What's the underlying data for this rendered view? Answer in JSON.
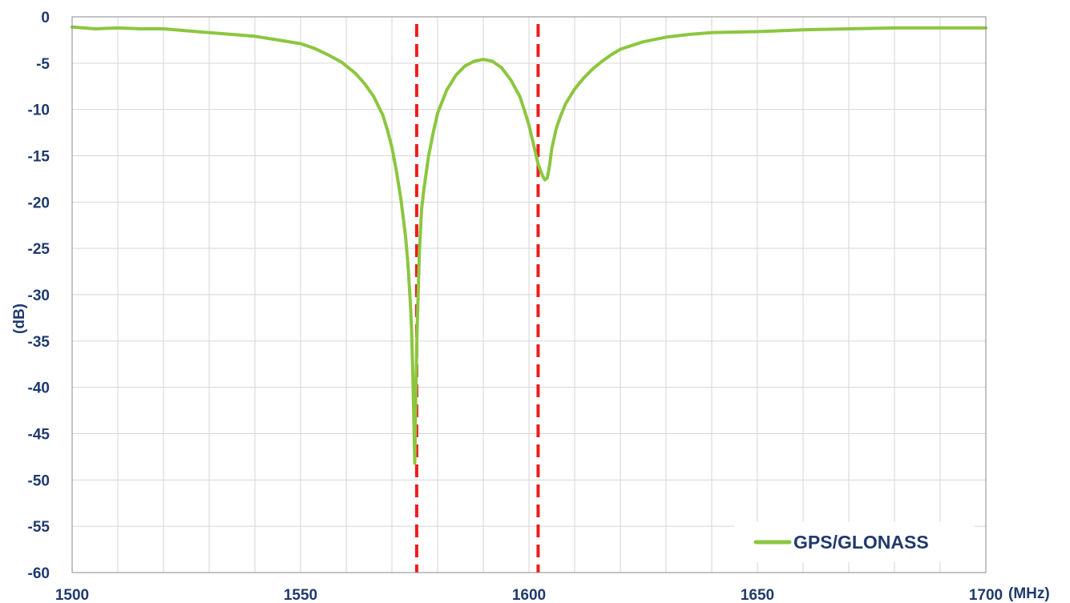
{
  "chart_data": {
    "type": "line",
    "title": "",
    "xlabel": "(MHz)",
    "ylabel": "(dB)",
    "xlim": [
      1500,
      1700
    ],
    "ylim": [
      -60,
      0
    ],
    "xticks": [
      1500,
      1550,
      1600,
      1650,
      1700
    ],
    "xtick_labels": [
      "1500",
      "1550",
      "1600",
      "1650",
      "1700"
    ],
    "yticks": [
      0,
      -5,
      -10,
      -15,
      -20,
      -25,
      -30,
      -35,
      -40,
      -45,
      -50,
      -55,
      -60
    ],
    "ytick_labels": [
      "0",
      "-5",
      "-10",
      "-15",
      "-20",
      "-25",
      "-30",
      "-35",
      "-40",
      "-45",
      "-50",
      "-55",
      "-60"
    ],
    "x_minor_step": 10,
    "grid": true,
    "legend": {
      "position": "bottom-right"
    },
    "series": [
      {
        "name": "GPS/GLONASS",
        "color": "#8cc63f",
        "x": [
          1500,
          1505,
          1510,
          1515,
          1520,
          1525,
          1530,
          1535,
          1540,
          1545,
          1550,
          1553,
          1556,
          1559,
          1562,
          1564,
          1566,
          1568,
          1569,
          1570,
          1571,
          1572,
          1573,
          1573.5,
          1574,
          1574.3,
          1574.6,
          1574.8,
          1575,
          1575.2,
          1575.5,
          1576,
          1576.5,
          1577,
          1578,
          1579,
          1580,
          1582,
          1584,
          1586,
          1588,
          1590,
          1592,
          1594,
          1596,
          1598,
          1599,
          1600,
          1601,
          1602,
          1603,
          1603.5,
          1604,
          1604.5,
          1605,
          1606,
          1607,
          1608,
          1610,
          1612,
          1614,
          1616,
          1618,
          1620,
          1625,
          1630,
          1635,
          1640,
          1650,
          1660,
          1670,
          1680,
          1690,
          1700
        ],
        "y": [
          -1.1,
          -1.3,
          -1.2,
          -1.3,
          -1.3,
          -1.5,
          -1.7,
          -1.9,
          -2.1,
          -2.5,
          -2.9,
          -3.4,
          -4.1,
          -4.9,
          -6.1,
          -7.2,
          -8.6,
          -10.6,
          -12.2,
          -14.1,
          -16.7,
          -19.8,
          -23.8,
          -26.6,
          -30.6,
          -33.7,
          -39.1,
          -43.7,
          -48.2,
          -41.7,
          -33.8,
          -25.5,
          -20.8,
          -18.6,
          -15.1,
          -12.6,
          -10.4,
          -7.9,
          -6.3,
          -5.3,
          -4.8,
          -4.6,
          -4.8,
          -5.5,
          -6.8,
          -8.6,
          -10.1,
          -11.7,
          -13.8,
          -15.9,
          -17.2,
          -17.6,
          -17.4,
          -16.1,
          -14.2,
          -12.0,
          -10.6,
          -9.4,
          -7.8,
          -6.6,
          -5.6,
          -4.8,
          -4.1,
          -3.5,
          -2.7,
          -2.2,
          -1.9,
          -1.7,
          -1.6,
          -1.4,
          -1.3,
          -1.2,
          -1.2,
          -1.2
        ]
      }
    ],
    "reference_lines": [
      {
        "x": 1575.42,
        "color": "#ee1c1c",
        "style": "dashed"
      },
      {
        "x": 1602.0,
        "color": "#ee1c1c",
        "style": "dashed"
      }
    ]
  }
}
